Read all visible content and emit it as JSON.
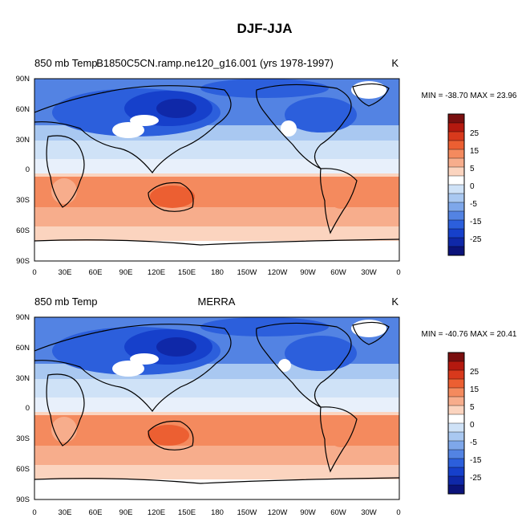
{
  "figure": {
    "title": "DJF-JJA"
  },
  "chart_data": [
    {
      "type": "heatmap",
      "left_label": "850 mb Temp",
      "center_label": "B1850C5CN.ramp.ne120_g16.001 (yrs 1978-1997)",
      "units": "K",
      "stats": "MIN = -38.70 MAX =  23.96",
      "x_ticks": [
        "0",
        "30E",
        "60E",
        "90E",
        "120E",
        "150E",
        "180",
        "150W",
        "120W",
        "90W",
        "60W",
        "30W",
        "0"
      ],
      "y_ticks": [
        "90N",
        "60N",
        "30N",
        "0",
        "30S",
        "60S",
        "90S"
      ],
      "x_range": [
        0,
        360
      ],
      "y_range": [
        -90,
        90
      ],
      "colorbar_labels": [
        "25",
        "15",
        "5",
        "0",
        "-5",
        "-15",
        "-25"
      ]
    },
    {
      "type": "heatmap",
      "left_label": "850 mb Temp",
      "center_label": "MERRA",
      "units": "K",
      "stats": "MIN = -40.76 MAX =  20.41",
      "x_ticks": [
        "0",
        "30E",
        "60E",
        "90E",
        "120E",
        "150E",
        "180",
        "150W",
        "120W",
        "90W",
        "60W",
        "30W",
        "0"
      ],
      "y_ticks": [
        "90N",
        "60N",
        "30N",
        "0",
        "30S",
        "60S",
        "90S"
      ],
      "x_range": [
        0,
        360
      ],
      "y_range": [
        -90,
        90
      ],
      "colorbar_labels": [
        "25",
        "15",
        "5",
        "0",
        "-5",
        "-15",
        "-25"
      ]
    }
  ],
  "colors": {
    "levels": [
      "#7a0f0f",
      "#b4190f",
      "#d8391c",
      "#ec5f32",
      "#f48a5e",
      "#f7ad8c",
      "#fbd4bf",
      "#ffffff",
      "#cfe2f7",
      "#a9c8f1",
      "#7ea7ea",
      "#5383e3",
      "#2c5fdc",
      "#1640cb",
      "#0f28a8",
      "#0b137a"
    ]
  }
}
